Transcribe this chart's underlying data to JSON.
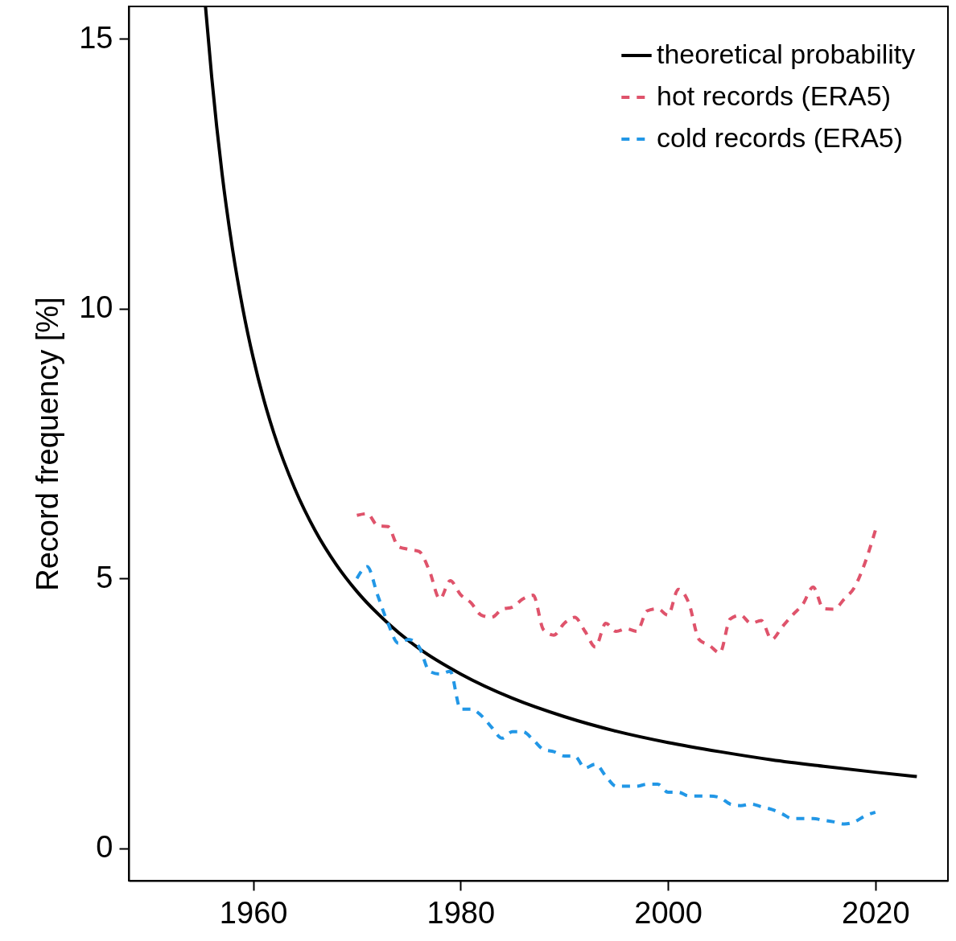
{
  "chart_data": {
    "type": "line",
    "ylabel": "Record frequency [%]",
    "xlim": [
      1948,
      2027
    ],
    "xticks": [
      1960,
      1980,
      2000,
      2020
    ],
    "ylim": [
      -0.6,
      15.6
    ],
    "yticks": [
      0,
      5,
      10,
      15
    ],
    "grid": false,
    "legend": "top right",
    "marker": "none",
    "series": [
      {
        "name": "theoretical probability",
        "color": "#000000",
        "line_style": "solid",
        "x": [
          1955.4,
          1956,
          1957,
          1958,
          1959,
          1960,
          1961,
          1962,
          1964,
          1966,
          1968,
          1970,
          1973,
          1976,
          1980,
          1985,
          1990,
          1995,
          2000,
          2005,
          2010,
          2015,
          2020,
          2024
        ],
        "values": [
          15.6,
          14.29,
          12.5,
          11.11,
          10.0,
          9.09,
          8.33,
          7.69,
          6.67,
          5.88,
          5.26,
          4.76,
          4.17,
          3.7,
          3.23,
          2.78,
          2.44,
          2.17,
          1.96,
          1.79,
          1.64,
          1.52,
          1.41,
          1.33
        ]
      },
      {
        "name": "hot records (ERA5)",
        "color": "#df536b",
        "line_style": "dashed",
        "x": [
          1970,
          1971,
          1972,
          1973,
          1974,
          1975,
          1976,
          1977,
          1978,
          1979,
          1980,
          1981,
          1982,
          1983,
          1984,
          1985,
          1986,
          1987,
          1988,
          1989,
          1990,
          1991,
          1992,
          1993,
          1994,
          1995,
          1996,
          1997,
          1998,
          1999,
          2000,
          2001,
          2002,
          2003,
          2004,
          2005,
          2006,
          2007,
          2008,
          2009,
          2010,
          2011,
          2012,
          2013,
          2014,
          2015,
          2016,
          2017,
          2018,
          2019,
          2020
        ],
        "values": [
          6.17,
          6.2,
          5.98,
          5.96,
          5.59,
          5.54,
          5.5,
          5.14,
          4.62,
          4.96,
          4.7,
          4.55,
          4.32,
          4.28,
          4.43,
          4.47,
          4.62,
          4.69,
          4.05,
          3.95,
          4.17,
          4.28,
          4.02,
          3.73,
          4.17,
          4.02,
          4.07,
          4.02,
          4.4,
          4.44,
          4.32,
          4.8,
          4.55,
          3.87,
          3.76,
          3.62,
          4.25,
          4.32,
          4.17,
          4.22,
          3.87,
          4.1,
          4.32,
          4.52,
          4.84,
          4.44,
          4.43,
          4.62,
          4.84,
          5.29,
          5.89
        ]
      },
      {
        "name": "cold records (ERA5)",
        "color": "#2297e6",
        "line_style": "dashed",
        "x": [
          1970,
          1971,
          1972,
          1973,
          1974,
          1975,
          1976,
          1977,
          1978,
          1979,
          1980,
          1981,
          1982,
          1983,
          1984,
          1985,
          1986,
          1987,
          1988,
          1989,
          1990,
          1991,
          1992,
          1993,
          1994,
          1995,
          1996,
          1997,
          1998,
          1999,
          2000,
          2001,
          2002,
          2003,
          2004,
          2005,
          2006,
          2007,
          2008,
          2009,
          2010,
          2011,
          2012,
          2013,
          2014,
          2015,
          2016,
          2017,
          2018,
          2019,
          2020
        ],
        "values": [
          5.0,
          5.22,
          4.69,
          4.17,
          3.8,
          3.87,
          3.73,
          3.28,
          3.23,
          3.28,
          2.58,
          2.58,
          2.46,
          2.24,
          2.04,
          2.16,
          2.16,
          2.01,
          1.83,
          1.79,
          1.71,
          1.71,
          1.49,
          1.56,
          1.34,
          1.15,
          1.15,
          1.15,
          1.19,
          1.19,
          1.04,
          1.04,
          0.97,
          0.97,
          0.97,
          0.94,
          0.82,
          0.79,
          0.82,
          0.77,
          0.72,
          0.64,
          0.55,
          0.55,
          0.55,
          0.52,
          0.49,
          0.45,
          0.49,
          0.6,
          0.67
        ]
      }
    ]
  }
}
